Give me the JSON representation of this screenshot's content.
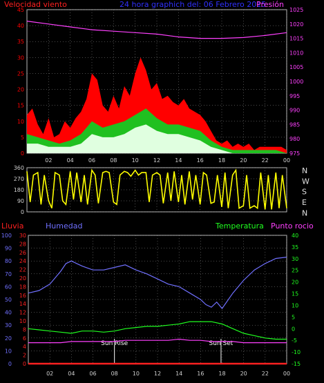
{
  "colors": {
    "wind_title": "#ff2020",
    "date_title": "#3030ff",
    "pressure": "#ff40ff",
    "humidity": "#7070ff",
    "temperature": "#20ff20",
    "dewpoint": "#ff40ff",
    "rain": "#ff2020",
    "direction": "#ffff00",
    "grid": "#9a9a9a",
    "axis_text": "#d0d0d0",
    "gust": "#ff0000",
    "avg_wind": "#20c020",
    "min_wind": "#e0ffe0"
  },
  "header": {
    "wind_title": "Velocidad viento",
    "date_title": "24 hora graphich del: 06 Febrero 2015",
    "pressure_title": "Presión"
  },
  "bottom_header": {
    "rain": "Lluvia",
    "humidity": "Humedad",
    "temperature": "Temperatura",
    "dewpoint": "Punto rocio"
  },
  "sun": {
    "rise_label": "Sun Rise",
    "set_label": "Sun Set",
    "rise_hour": 8.0,
    "set_hour": 17.9
  },
  "compass": [
    "N",
    "W",
    "S",
    "E",
    "N"
  ],
  "chart_data": [
    {
      "type": "area",
      "name": "wind-and-pressure",
      "title": "24 hora graphich del: 06 Febrero 2015",
      "xlabel": "",
      "x_ticks": [
        "02",
        "04",
        "06",
        "08",
        "10",
        "12",
        "14",
        "16",
        "18",
        "20",
        "22",
        "00"
      ],
      "left_axis": {
        "label": "Velocidad viento",
        "ticks": [
          0,
          5,
          10,
          15,
          20,
          25,
          30,
          35,
          40,
          45
        ],
        "ylim": [
          0,
          45
        ]
      },
      "right_axis": {
        "label": "Presión",
        "ticks": [
          975,
          980,
          985,
          990,
          995,
          1000,
          1005,
          1010,
          1015,
          1020,
          1025
        ],
        "ylim": [
          975,
          1025
        ]
      },
      "grid": true,
      "series": [
        {
          "name": "gust",
          "axis": "left",
          "x": [
            0,
            0.5,
            1,
            1.5,
            2,
            2.5,
            3,
            3.5,
            4,
            4.5,
            5,
            5.5,
            6,
            6.5,
            7,
            7.5,
            8,
            8.5,
            9,
            9.5,
            10,
            10.5,
            11,
            11.5,
            12,
            12.5,
            13,
            13.5,
            14,
            14.5,
            15,
            15.5,
            16,
            16.5,
            17,
            17.5,
            18,
            18.5,
            19,
            19.5,
            20,
            20.5,
            21,
            21.5,
            22,
            22.5,
            23,
            23.5,
            24
          ],
          "y": [
            12,
            14,
            9,
            6,
            11,
            5,
            6,
            10,
            8,
            11,
            13,
            17,
            25,
            23,
            15,
            13,
            18,
            14,
            21,
            18,
            25,
            30,
            26,
            20,
            22,
            17,
            18,
            16,
            15,
            17,
            14,
            13,
            12,
            10,
            7,
            4,
            3,
            4,
            2,
            3,
            2,
            3,
            1,
            2,
            2,
            2,
            2,
            2,
            1
          ]
        },
        {
          "name": "avg",
          "axis": "left",
          "x": [
            0,
            1,
            2,
            3,
            4,
            5,
            6,
            7,
            8,
            9,
            10,
            11,
            12,
            13,
            14,
            15,
            16,
            17,
            18,
            19,
            20,
            21,
            22,
            23,
            24
          ],
          "y": [
            6,
            5,
            4,
            3,
            4,
            6,
            10,
            8,
            9,
            10,
            12,
            14,
            11,
            9,
            9,
            8,
            7,
            4,
            2,
            1,
            1,
            1,
            1,
            1,
            0
          ]
        },
        {
          "name": "min",
          "axis": "left",
          "x": [
            0,
            1,
            2,
            3,
            4,
            5,
            6,
            7,
            8,
            9,
            10,
            11,
            12,
            13,
            14,
            15,
            16,
            17,
            18,
            19,
            20,
            21,
            22,
            23,
            24
          ],
          "y": [
            3,
            3,
            2,
            2,
            2,
            3,
            6,
            5,
            5,
            6,
            8,
            9,
            7,
            6,
            6,
            5,
            4,
            2,
            1,
            0,
            0,
            0,
            0,
            0,
            0
          ]
        },
        {
          "name": "pressure",
          "axis": "right",
          "x": [
            0,
            2,
            4,
            6,
            8,
            10,
            12,
            14,
            16,
            18,
            20,
            22,
            24
          ],
          "y": [
            1021,
            1020,
            1019,
            1018,
            1017.5,
            1017,
            1016.5,
            1015.5,
            1015,
            1015,
            1015.3,
            1016,
            1017
          ]
        }
      ]
    },
    {
      "type": "line",
      "name": "wind-direction",
      "left_axis": {
        "ticks": [
          0,
          90,
          180,
          270,
          360
        ],
        "ylim": [
          0,
          360
        ]
      },
      "right_axis": {
        "labels": [
          "N",
          "W",
          "S",
          "E",
          "N"
        ]
      },
      "grid": true,
      "series": [
        {
          "name": "direction",
          "x": [
            0,
            0.3,
            0.6,
            1,
            1.3,
            1.6,
            2,
            2.3,
            2.6,
            3,
            3.3,
            3.6,
            4,
            4.3,
            4.6,
            5,
            5.3,
            5.6,
            6,
            6.3,
            6.6,
            7,
            7.3,
            7.6,
            8,
            8.3,
            8.6,
            9,
            9.3,
            9.6,
            10,
            10.3,
            10.6,
            11,
            11.3,
            11.6,
            12,
            12.3,
            12.6,
            13,
            13.3,
            13.6,
            14,
            14.3,
            14.6,
            15,
            15.3,
            15.6,
            16,
            16.3,
            16.6,
            17,
            17.3,
            17.6,
            18,
            18.3,
            18.6,
            19,
            19.3,
            19.6,
            20,
            20.3,
            20.6,
            21,
            21.3,
            21.6,
            22,
            22.3,
            22.6,
            23,
            23.3,
            23.6,
            24
          ],
          "y": [
            330,
            80,
            300,
            320,
            60,
            300,
            90,
            30,
            320,
            300,
            90,
            60,
            330,
            100,
            320,
            80,
            300,
            60,
            340,
            300,
            70,
            320,
            330,
            320,
            80,
            60,
            300,
            330,
            320,
            290,
            340,
            300,
            320,
            320,
            80,
            300,
            320,
            300,
            70,
            320,
            90,
            330,
            80,
            300,
            60,
            330,
            100,
            300,
            60,
            320,
            300,
            70,
            80,
            300,
            40,
            320,
            30,
            300,
            340,
            30,
            50,
            300,
            30,
            50,
            30,
            320,
            20,
            300,
            20,
            320,
            30,
            300,
            30
          ]
        }
      ]
    },
    {
      "type": "line",
      "name": "rain-humidity-temperature-dewpoint",
      "x_ticks": [
        "02",
        "04",
        "06",
        "08",
        "10",
        "12",
        "14",
        "16",
        "18",
        "20",
        "22",
        "00"
      ],
      "axes": {
        "humidity": {
          "ticks": [
            0,
            10,
            20,
            30,
            40,
            50,
            60,
            70,
            80,
            90,
            100
          ],
          "ylim": [
            0,
            100
          ]
        },
        "rain": {
          "ticks": [
            0,
            2,
            4,
            6,
            8,
            10,
            12,
            14,
            16,
            18,
            20,
            22,
            24,
            26,
            28,
            30
          ],
          "ylim": [
            0,
            30
          ]
        },
        "temperature": {
          "ticks": [
            -15,
            -10,
            -5,
            0,
            5,
            10,
            15,
            20,
            25,
            30,
            35,
            40
          ],
          "ylim": [
            -15,
            40
          ]
        }
      },
      "grid": true,
      "series": [
        {
          "name": "Humedad",
          "axis": "humidity",
          "x": [
            0,
            1,
            2,
            3,
            3.5,
            4,
            4.5,
            5,
            6,
            7,
            8,
            9,
            10,
            11,
            12,
            13,
            14,
            15,
            16,
            16.5,
            17,
            17.5,
            18,
            19,
            20,
            21,
            22,
            23,
            24
          ],
          "y": [
            55,
            57,
            62,
            72,
            78,
            80,
            78,
            76,
            73,
            73,
            75,
            77,
            73,
            70,
            66,
            62,
            60,
            55,
            50,
            46,
            44,
            48,
            43,
            55,
            65,
            73,
            78,
            82,
            83
          ]
        },
        {
          "name": "Temperatura",
          "axis": "temperature",
          "x": [
            0,
            1,
            2,
            3,
            4,
            5,
            6,
            7,
            8,
            9,
            10,
            11,
            12,
            13,
            14,
            15,
            16,
            17,
            18,
            19,
            20,
            21,
            22,
            23,
            24
          ],
          "y": [
            0,
            -0.5,
            -1,
            -1.5,
            -2,
            -1,
            -1,
            -1.5,
            -1,
            0,
            0.5,
            1,
            1,
            1.5,
            2,
            3,
            3,
            3,
            2,
            0,
            -2,
            -3,
            -4,
            -4.5,
            -4.5
          ]
        },
        {
          "name": "Punto rocio",
          "axis": "temperature",
          "x": [
            0,
            1,
            2,
            3,
            4,
            5,
            6,
            7,
            8,
            9,
            10,
            11,
            12,
            13,
            14,
            15,
            16,
            17,
            18,
            19,
            20,
            21,
            22,
            23,
            24
          ],
          "y": [
            -6,
            -6,
            -6,
            -6,
            -5.5,
            -5.5,
            -5.5,
            -5.5,
            -5.5,
            -5,
            -5,
            -5,
            -5,
            -5,
            -4.5,
            -5,
            -5,
            -5.5,
            -5.5,
            -5.5,
            -6,
            -6,
            -6,
            -6,
            -6
          ]
        },
        {
          "name": "Lluvia",
          "axis": "rain",
          "x": [
            0,
            24
          ],
          "y": [
            0,
            0
          ]
        }
      ]
    }
  ]
}
